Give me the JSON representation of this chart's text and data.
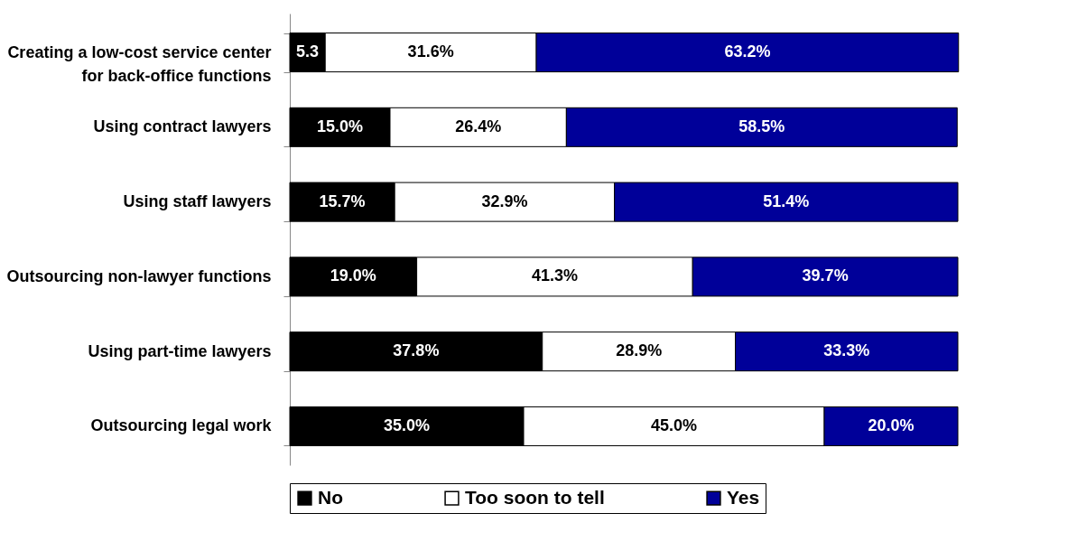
{
  "chart_data": {
    "type": "bar",
    "orientation": "horizontal",
    "stacked": true,
    "categories": [
      "Creating a low-cost service center for back-office functions",
      "Using contract lawyers",
      "Using staff lawyers",
      "Outsourcing non-lawyer functions",
      "Using part-time lawyers",
      "Outsourcing legal work"
    ],
    "series": [
      {
        "name": "No",
        "color": "#000000",
        "values": [
          5.3,
          15.0,
          15.7,
          19.0,
          37.8,
          35.0
        ],
        "value_labels": [
          "5.3",
          "15.0%",
          "15.7%",
          "19.0%",
          "37.8%",
          "35.0%"
        ]
      },
      {
        "name": "Too soon to tell",
        "color": "#ffffff",
        "values": [
          31.6,
          26.4,
          32.9,
          41.3,
          28.9,
          45.0
        ],
        "value_labels": [
          "31.6%",
          "26.4%",
          "32.9%",
          "41.3%",
          "28.9%",
          "45.0%"
        ]
      },
      {
        "name": "Yes",
        "color": "#000099",
        "values": [
          63.2,
          58.5,
          51.4,
          39.7,
          33.3,
          20.0
        ],
        "value_labels": [
          "63.2%",
          "58.5%",
          "51.4%",
          "39.7%",
          "33.3%",
          "20.0%"
        ]
      }
    ],
    "xlim": [
      0,
      100
    ],
    "tick_labels": "y",
    "legend": "bottom"
  }
}
